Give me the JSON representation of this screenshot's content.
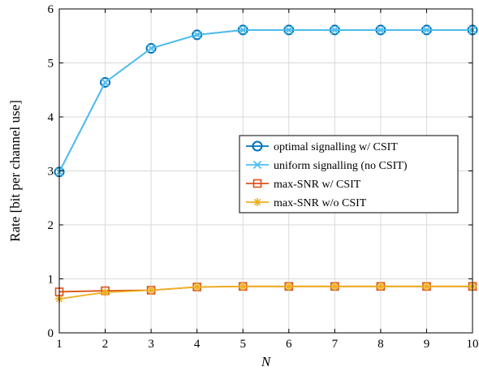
{
  "chart_data": {
    "type": "line",
    "xlabel": "N",
    "ylabel": "Rate [bit per channel use]",
    "xlim": [
      1,
      10
    ],
    "ylim": [
      0,
      6
    ],
    "xticks": [
      "1",
      "2",
      "3",
      "4",
      "5",
      "6",
      "7",
      "8",
      "9",
      "10"
    ],
    "yticks": [
      "0",
      "1",
      "2",
      "3",
      "4",
      "5",
      "6"
    ],
    "grid": true,
    "legend_position": "center-right",
    "x": [
      1,
      2,
      3,
      4,
      5,
      6,
      7,
      8,
      9,
      10
    ],
    "series": [
      {
        "name": "optimal signalling w/ CSIT",
        "color": "#0072BD",
        "marker": "circle",
        "values": [
          2.98,
          4.64,
          5.27,
          5.52,
          5.61,
          5.61,
          5.61,
          5.61,
          5.61,
          5.61
        ]
      },
      {
        "name": "uniform signalling (no CSIT)",
        "color": "#4DBEEE",
        "marker": "x",
        "values": [
          2.98,
          4.64,
          5.27,
          5.52,
          5.61,
          5.61,
          5.61,
          5.61,
          5.61,
          5.61
        ]
      },
      {
        "name": "max-SNR w/ CSIT",
        "color": "#D95319",
        "marker": "square",
        "values": [
          0.76,
          0.78,
          0.79,
          0.85,
          0.86,
          0.86,
          0.86,
          0.86,
          0.86,
          0.86
        ]
      },
      {
        "name": "max-SNR w/o CSIT",
        "color": "#EDB120",
        "marker": "star",
        "values": [
          0.63,
          0.75,
          0.79,
          0.85,
          0.86,
          0.86,
          0.86,
          0.86,
          0.86,
          0.86
        ]
      }
    ]
  }
}
